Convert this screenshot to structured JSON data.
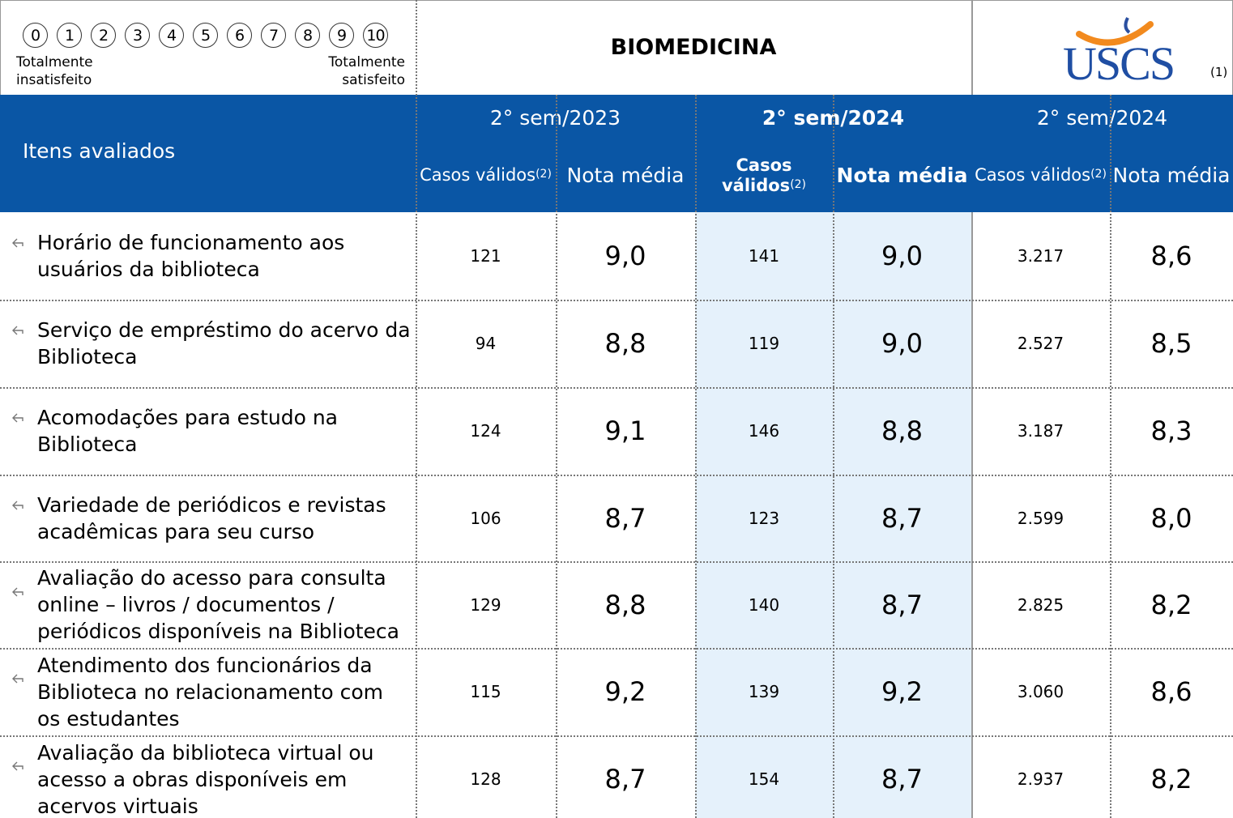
{
  "scale": {
    "points": [
      0,
      1,
      2,
      3,
      4,
      5,
      6,
      7,
      8,
      9,
      10
    ],
    "left": "Totalmente insatisfeito",
    "right": "Totalmente satisfeito"
  },
  "title": "BIOMEDICINA",
  "logo": {
    "text": "USCS",
    "note": "(1)"
  },
  "header": {
    "item": "Itens avaliados",
    "groups": [
      "2° sem/2023",
      "2° sem/2024",
      "2° sem/2024"
    ],
    "columns": [
      {
        "text": "Casos válidos",
        "note": "(2)"
      },
      {
        "text": "Nota média"
      },
      {
        "text": "Casos válidos",
        "note": "(2)"
      },
      {
        "text": "Nota média"
      },
      {
        "text": "Casos válidos",
        "note": "(2)"
      },
      {
        "text": "Nota média"
      }
    ]
  },
  "rows": [
    {
      "item": "Horário de funcionamento aos usuários da biblioteca",
      "values": [
        "121",
        "9,0",
        "141",
        "9,0",
        "3.217",
        "8,6"
      ]
    },
    {
      "item": "Serviço de empréstimo do acervo da Biblioteca",
      "values": [
        "94",
        "8,8",
        "119",
        "9,0",
        "2.527",
        "8,5"
      ]
    },
    {
      "item": "Acomodações para estudo na Biblioteca",
      "values": [
        "124",
        "9,1",
        "146",
        "8,8",
        "3.187",
        "8,3"
      ]
    },
    {
      "item": "Variedade de periódicos e revistas acadêmicas para seu curso",
      "values": [
        "106",
        "8,7",
        "123",
        "8,7",
        "2.599",
        "8,0"
      ]
    },
    {
      "item": "Avaliação do acesso para consulta online – livros / documentos / periódicos disponíveis na Biblioteca",
      "values": [
        "129",
        "8,8",
        "140",
        "8,7",
        "2.825",
        "8,2"
      ]
    },
    {
      "item": "Atendimento dos funcionários da Biblioteca no relacionamento com os estudantes",
      "values": [
        "115",
        "9,2",
        "139",
        "9,2",
        "3.060",
        "8,6"
      ]
    },
    {
      "item": "Avaliação da biblioteca virtual ou acesso a obras disponíveis em acervos virtuais",
      "values": [
        "128",
        "8,7",
        "154",
        "8,7",
        "2.937",
        "8,2"
      ]
    }
  ]
}
